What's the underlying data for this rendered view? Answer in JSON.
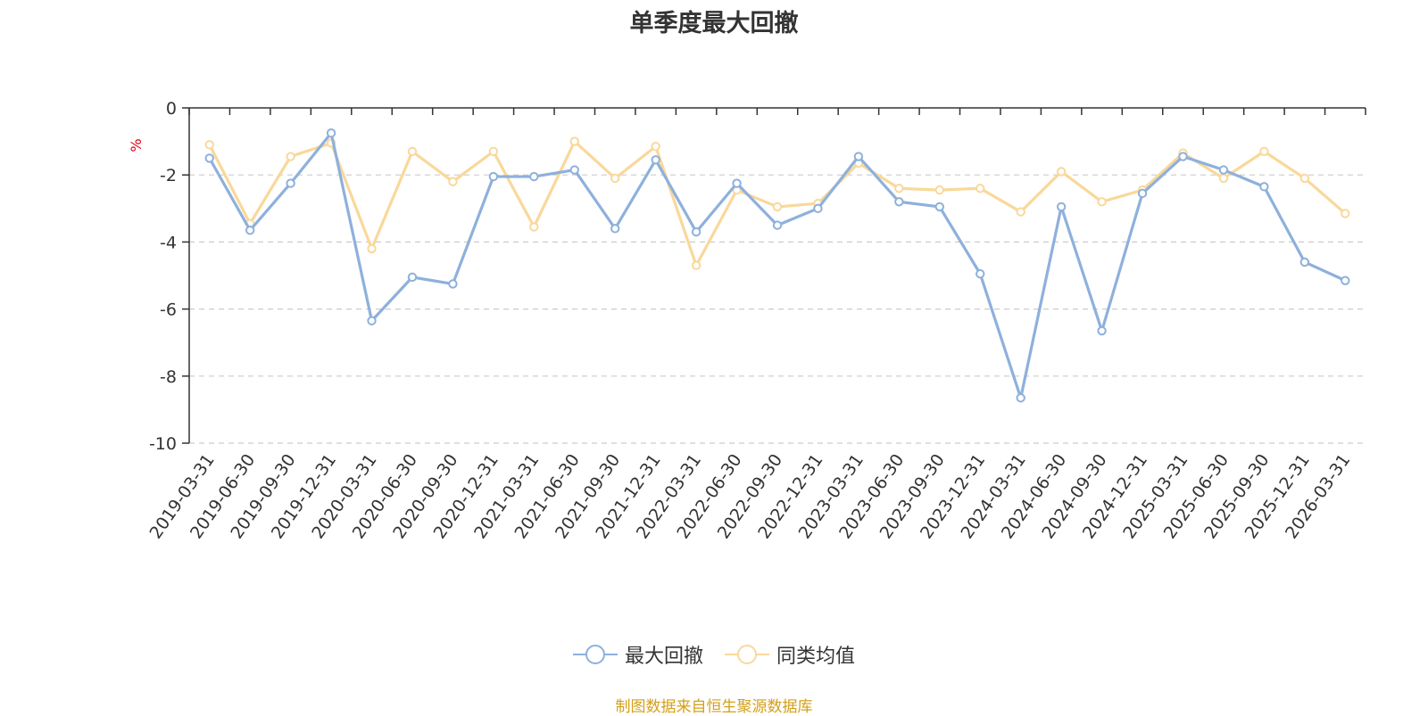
{
  "chart_data": {
    "type": "line",
    "title": "单季度最大回撤",
    "ylabel": "%",
    "ylim": [
      -10,
      0
    ],
    "yticks": [
      "0",
      "-2",
      "-4",
      "-6",
      "-8",
      "-10"
    ],
    "grid": true,
    "legend_position": "bottom-center",
    "categories": [
      "2019-03-31",
      "2019-06-30",
      "2019-09-30",
      "2019-12-31",
      "2020-03-31",
      "2020-06-30",
      "2020-09-30",
      "2020-12-31",
      "2021-03-31",
      "2021-06-30",
      "2021-09-30",
      "2021-12-31",
      "2022-03-31",
      "2022-06-30",
      "2022-09-30",
      "2022-12-31",
      "2023-03-31",
      "2023-06-30",
      "2023-09-30",
      "2023-12-31",
      "2024-03-31",
      "2024-06-30",
      "2024-09-30",
      "2024-12-31",
      "2025-03-31",
      "2025-06-30",
      "2025-09-30",
      "2025-12-31",
      "2026-03-31"
    ],
    "series": [
      {
        "name": "最大回撤",
        "color": "#8eb0dc",
        "values": [
          -1.5,
          -3.65,
          -2.25,
          -0.75,
          -6.35,
          -5.05,
          -5.25,
          -2.05,
          -2.05,
          -1.85,
          -3.6,
          -1.55,
          -3.7,
          -2.25,
          -3.5,
          -3.0,
          -1.45,
          -2.8,
          -2.95,
          -4.95,
          -8.65,
          -2.95,
          -6.65,
          -2.55,
          -1.45,
          -1.85,
          -2.35,
          -4.6,
          -5.15
        ]
      },
      {
        "name": "同类均值",
        "color": "#f9d89a",
        "values": [
          -1.1,
          -3.45,
          -1.45,
          -1.05,
          -4.2,
          -1.3,
          -2.2,
          -1.3,
          -3.55,
          -1.0,
          -2.1,
          -1.15,
          -4.7,
          -2.45,
          -2.95,
          -2.85,
          -1.65,
          -2.4,
          -2.45,
          -2.4,
          -3.1,
          -1.9,
          -2.8,
          -2.45,
          -1.35,
          -2.1,
          -1.3,
          -2.1,
          -3.15
        ]
      }
    ]
  },
  "source_text": "制图数据来自恒生聚源数据库"
}
